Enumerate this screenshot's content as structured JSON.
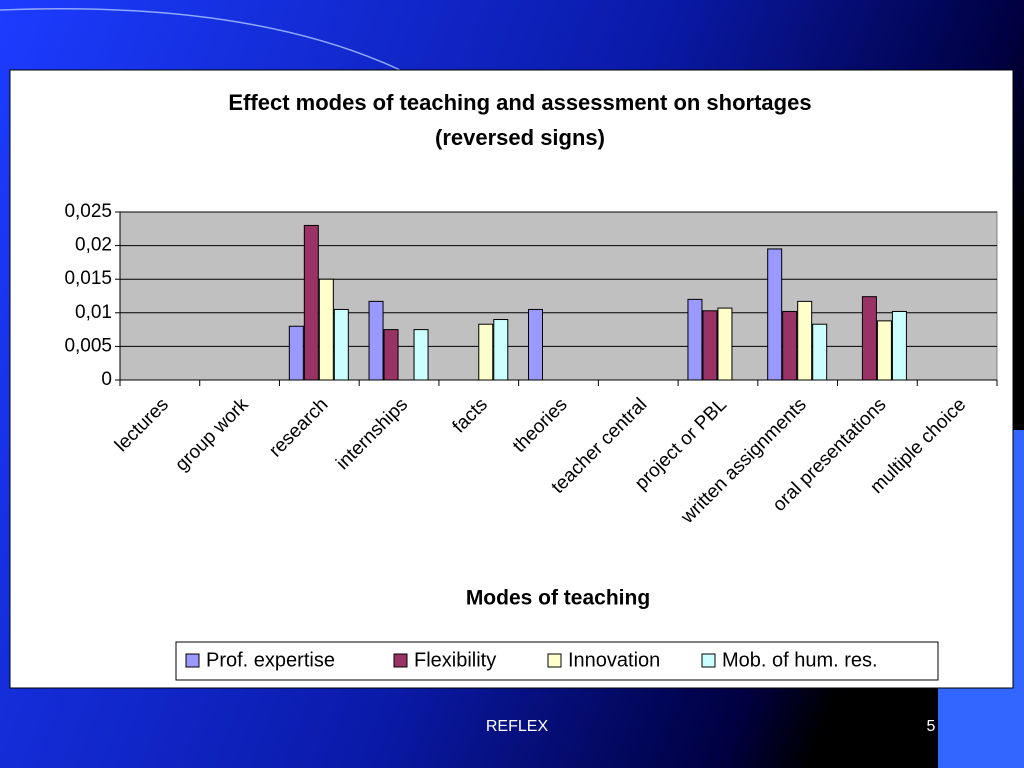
{
  "chart_data": {
    "type": "bar",
    "title": "Effect modes of teaching and assessment on shortages",
    "subtitle": "(reversed signs)",
    "x_label": "Modes of teaching",
    "categories": [
      "lectures",
      "group work",
      "research",
      "internships",
      "facts",
      "theories",
      "teacher central",
      "project or PBL",
      "written assignments",
      "oral presentations",
      "multiple choice"
    ],
    "series": [
      {
        "name": "Prof. expertise",
        "color": "#9999ff",
        "values": [
          null,
          null,
          0.008,
          0.0117,
          null,
          0.0105,
          null,
          0.012,
          0.0195,
          null,
          null
        ]
      },
      {
        "name": "Flexibility",
        "color": "#993366",
        "values": [
          null,
          null,
          0.023,
          0.0075,
          null,
          null,
          null,
          0.0103,
          0.0102,
          0.0124,
          null
        ]
      },
      {
        "name": "Innovation",
        "color": "#ffffcc",
        "values": [
          null,
          null,
          0.015,
          null,
          0.0083,
          null,
          null,
          0.0107,
          0.0117,
          0.0088,
          null
        ]
      },
      {
        "name": "Mob. of hum. res.",
        "color": "#ccffff",
        "values": [
          null,
          null,
          0.0105,
          0.0075,
          0.009,
          null,
          null,
          null,
          0.0083,
          0.0102,
          null
        ]
      }
    ],
    "ylim": [
      0,
      0.025
    ],
    "yticks": [
      0,
      {
        "value": 0.005,
        "label": "0,005"
      },
      {
        "value": 0.01,
        "label": "0,01"
      },
      {
        "value": 0.015,
        "label": "0,015"
      },
      {
        "value": 0.02,
        "label": "0,02"
      },
      {
        "value": 0.025,
        "label": "0,025"
      }
    ],
    "grid": true,
    "legend": "bottom"
  },
  "slide": {
    "footer": "REFLEX",
    "page_number": "5"
  }
}
